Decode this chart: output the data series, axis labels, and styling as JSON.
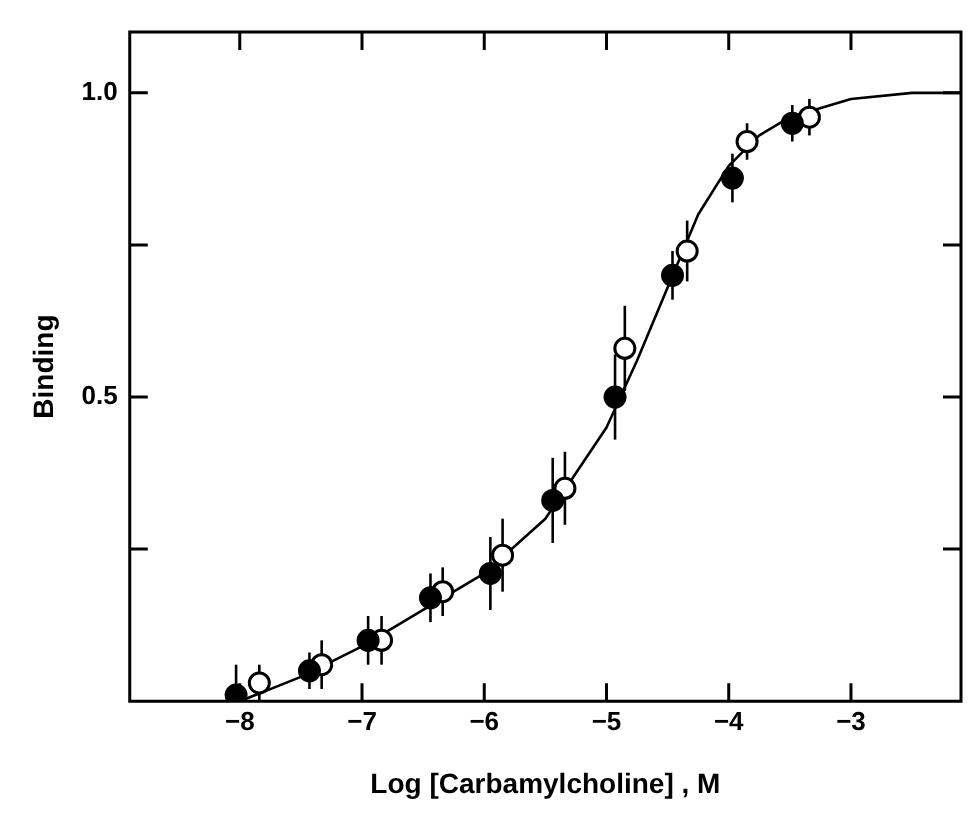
{
  "chart_data": {
    "type": "scatter",
    "xlabel": "Log [Carbamylcholine] , M",
    "ylabel": "Binding",
    "xlim": [
      -8.9,
      -2.1
    ],
    "xticks": [
      -8,
      -7,
      -6,
      -5,
      -4,
      -3
    ],
    "ylim": [
      0,
      1.1
    ],
    "yticks": [
      {
        "value": 0.25,
        "label": null
      },
      0.5,
      {
        "value": 0.75,
        "label": null
      },
      {
        "value": 1.0,
        "label": "1.0"
      }
    ],
    "grid": false,
    "legend": false,
    "marker": "circle",
    "series": [
      {
        "type": "line",
        "color": "#000000",
        "marker": "none",
        "x": [
          -8.0,
          -7.5,
          -7.0,
          -6.5,
          -6.0,
          -5.5,
          -5.0,
          -4.75,
          -4.5,
          -4.25,
          -4.0,
          -3.75,
          -3.5,
          -3.0,
          -2.5,
          -2.1
        ],
        "values": [
          0.0,
          0.04,
          0.09,
          0.15,
          0.21,
          0.3,
          0.45,
          0.56,
          0.68,
          0.8,
          0.88,
          0.93,
          0.96,
          0.99,
          1.0,
          1.0
        ]
      },
      {
        "color": "#000000",
        "x": [
          -8.03,
          -7.43,
          -6.95,
          -6.44,
          -5.95,
          -5.44,
          -4.93,
          -4.46,
          -3.97,
          -3.48
        ],
        "values": [
          0.01,
          0.05,
          0.1,
          0.17,
          0.21,
          0.33,
          0.5,
          0.7,
          0.86,
          0.95
        ],
        "errors": [
          [
            0.0,
            0.06
          ],
          0.03,
          0.04,
          0.04,
          0.06,
          0.07,
          0.07,
          0.04,
          0.04,
          0.03
        ]
      },
      {
        "color": "#ffffff",
        "x": [
          -7.84,
          -7.33,
          -6.84,
          -6.34,
          -5.85,
          -5.34,
          -4.85,
          -4.34,
          -3.85,
          -3.34
        ],
        "values": [
          0.03,
          0.06,
          0.1,
          0.18,
          0.24,
          0.35,
          0.58,
          0.74,
          0.92,
          0.96
        ],
        "errors": [
          0.03,
          0.04,
          0.04,
          0.04,
          0.06,
          0.06,
          0.07,
          0.05,
          0.03,
          0.03
        ]
      }
    ]
  }
}
